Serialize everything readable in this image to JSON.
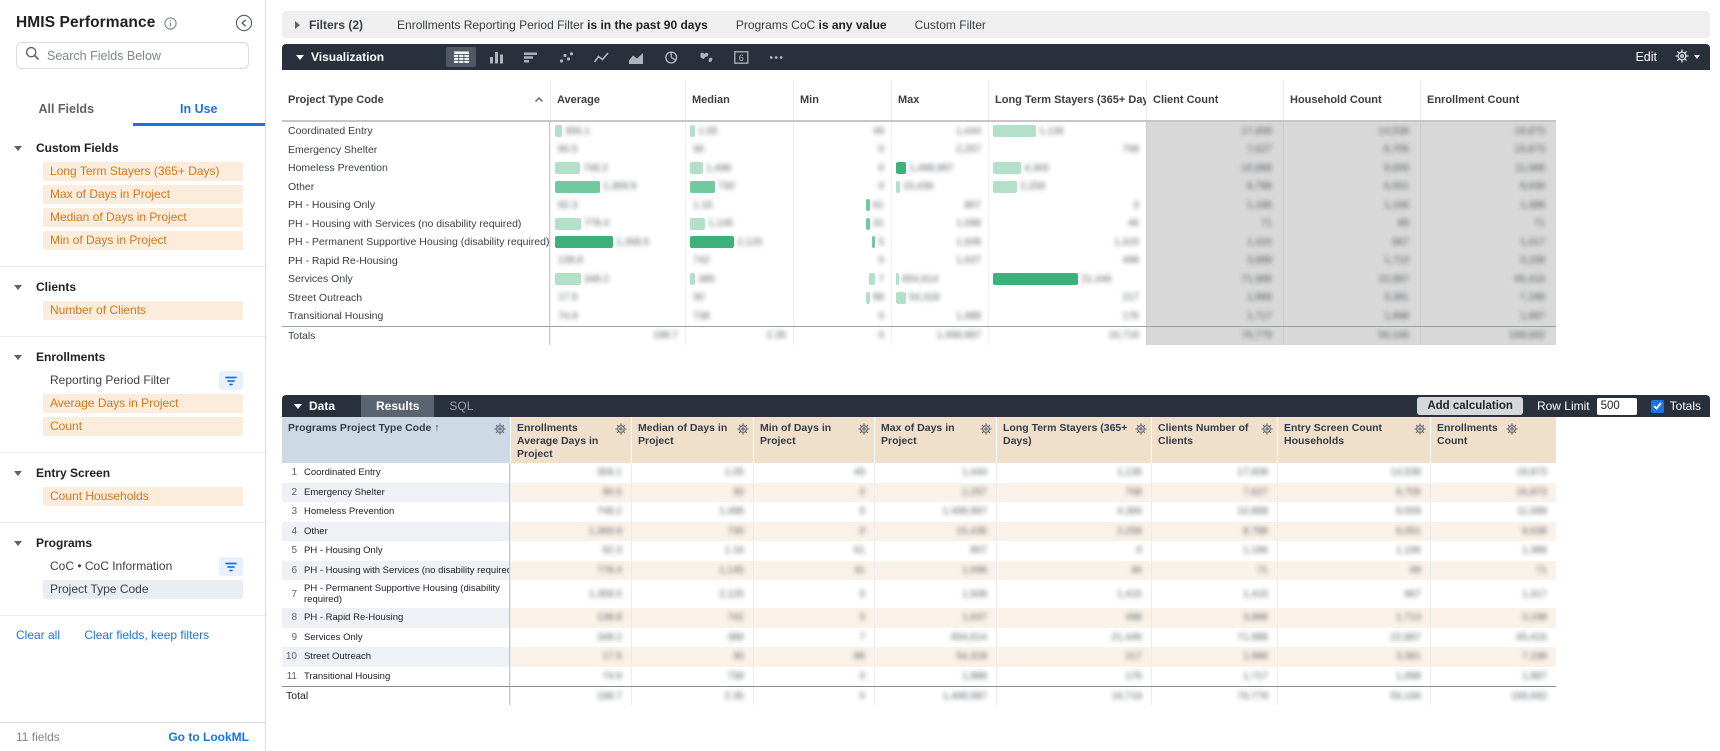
{
  "sidebar": {
    "title": "HMIS Performance",
    "search_placeholder": "Search Fields Below",
    "tabs": [
      {
        "label": "All Fields",
        "active": false
      },
      {
        "label": "In Use",
        "active": true
      }
    ],
    "sections": [
      {
        "name": "Custom Fields",
        "items": [
          {
            "label": "Long Term Stayers (365+ Days)",
            "kind": "measure"
          },
          {
            "label": "Max of Days in Project",
            "kind": "measure"
          },
          {
            "label": "Median of Days in Project",
            "kind": "measure"
          },
          {
            "label": "Min of Days in Project",
            "kind": "measure"
          }
        ]
      },
      {
        "name": "Clients",
        "items": [
          {
            "label": "Number of Clients",
            "kind": "measure"
          }
        ]
      },
      {
        "name": "Enrollments",
        "items": [
          {
            "label": "Reporting Period Filter",
            "kind": "filter"
          },
          {
            "label": "Average Days in Project",
            "kind": "measure"
          },
          {
            "label": "Count",
            "kind": "measure"
          }
        ]
      },
      {
        "name": "Entry Screen",
        "items": [
          {
            "label": "Count Households",
            "kind": "measure"
          }
        ]
      },
      {
        "name": "Programs",
        "items": [
          {
            "label": "CoC • CoC Information",
            "kind": "filter"
          },
          {
            "label": "Project Type Code",
            "kind": "dimension"
          }
        ]
      }
    ],
    "links": {
      "clear_all": "Clear all",
      "clear_fields": "Clear fields, keep filters"
    },
    "footer": {
      "fields_count": "11 fields",
      "lookml": "Go to LookML"
    }
  },
  "filters_bar": {
    "toggle_label": "Filters (2)",
    "filters": [
      {
        "field": "Enrollments Reporting Period Filter",
        "condition": "is in the past 90 days"
      },
      {
        "field": "Programs CoC",
        "condition": "is any value"
      },
      {
        "field": "Custom Filter",
        "condition": ""
      }
    ]
  },
  "viz_panel": {
    "label": "Visualization",
    "edit_label": "Edit",
    "chart_types": [
      {
        "name": "table-chart-icon",
        "selected": true
      },
      {
        "name": "column-chart-icon",
        "selected": false
      },
      {
        "name": "bar-chart-icon",
        "selected": false
      },
      {
        "name": "scatter-chart-icon",
        "selected": false
      },
      {
        "name": "line-chart-icon",
        "selected": false
      },
      {
        "name": "area-chart-icon",
        "selected": false
      },
      {
        "name": "pie-chart-icon",
        "selected": false
      },
      {
        "name": "map-chart-icon",
        "selected": false
      },
      {
        "name": "single-value-icon",
        "selected": false
      },
      {
        "name": "more-charts-icon",
        "selected": false
      }
    ]
  },
  "viz_table": {
    "values_redacted": true,
    "columns": [
      {
        "label": "Project Type Code",
        "kind": "dimension",
        "sorted": "asc"
      },
      {
        "label": "Average",
        "kind": "measure"
      },
      {
        "label": "Median",
        "kind": "measure"
      },
      {
        "label": "Min",
        "kind": "measure"
      },
      {
        "label": "Max",
        "kind": "measure"
      },
      {
        "label": "Long Term Stayers (365+ Days)",
        "kind": "measure"
      },
      {
        "label": "Client Count",
        "kind": "count"
      },
      {
        "label": "Household Count",
        "kind": "count"
      },
      {
        "label": "Enrollment Count",
        "kind": "count"
      }
    ],
    "totals_label": "Totals",
    "rows": [
      {
        "label": "Coordinated Entry",
        "avg": {
          "bar": 0.06,
          "shade": "light",
          "value": "306.1"
        },
        "med": {
          "bar": 0.05,
          "shade": "light",
          "value": "1.05"
        },
        "min": {
          "value": "49"
        },
        "max": {
          "value": "1,444"
        },
        "lts": {
          "bar": 0.3,
          "shade": "light",
          "value": "1,136"
        },
        "cc": "17,608",
        "hc": "14,538",
        "ec": "18,873"
      },
      {
        "label": "Emergency Shelter",
        "avg": {
          "value": "90.5"
        },
        "med": {
          "value": "30"
        },
        "min": {
          "value": "0"
        },
        "max": {
          "value": "2,257"
        },
        "lts": {
          "value": "708"
        },
        "cc": "7,627",
        "hc": "6,705",
        "ec": "16,873"
      },
      {
        "label": "Homeless Prevention",
        "avg": {
          "bar": 0.21,
          "shade": "light",
          "value": "748.2"
        },
        "med": {
          "bar": 0.14,
          "shade": "light",
          "value": "1,498"
        },
        "min": {
          "value": "0"
        },
        "max": {
          "bar": 0.12,
          "shade": "dark",
          "value": "1,498,987"
        },
        "lts": {
          "bar": 0.2,
          "shade": "light",
          "value": "4,366"
        },
        "cc": "10,888",
        "hc": "9,009",
        "ec": "11,088"
      },
      {
        "label": "Other",
        "avg": {
          "bar": 0.38,
          "shade": "mid",
          "value": "1,369.9"
        },
        "med": {
          "bar": 0.27,
          "shade": "mid",
          "value": "730"
        },
        "min": {
          "value": "0"
        },
        "max": {
          "bar": 0.05,
          "shade": "light",
          "value": "15,436"
        },
        "lts": {
          "bar": 0.17,
          "shade": "light",
          "value": "2,258"
        },
        "cc": "8,788",
        "hc": "6,051",
        "ec": "9,638"
      },
      {
        "label": "PH - Housing Only",
        "avg": {
          "value": "92.3"
        },
        "med": {
          "value": "1.16"
        },
        "min": {
          "bar": 0.05,
          "shade": "mid",
          "value": "61"
        },
        "max": {
          "value": "807"
        },
        "lts": {
          "value": "0"
        },
        "cc": "1,186",
        "hc": "1,166",
        "ec": "1,388"
      },
      {
        "label": "PH - Housing with Services (no disability required)",
        "avg": {
          "bar": 0.22,
          "shade": "light",
          "value": "778.4"
        },
        "med": {
          "bar": 0.16,
          "shade": "light",
          "value": "1,145"
        },
        "min": {
          "bar": 0.05,
          "shade": "mid",
          "value": "31"
        },
        "max": {
          "value": "1,098"
        },
        "lts": {
          "value": "46"
        },
        "cc": "71",
        "hc": "89",
        "ec": "71"
      },
      {
        "label": "PH - Permanent Supportive Housing (disability required)",
        "avg": {
          "bar": 0.49,
          "shade": "dark",
          "value": "1,358.5"
        },
        "med": {
          "bar": 0.48,
          "shade": "dark",
          "value": "2,125"
        },
        "min": {
          "bar": 0.04,
          "shade": "mid",
          "value": "5"
        },
        "max": {
          "value": "1,508"
        },
        "lts": {
          "value": "1,415"
        },
        "cc": "1,415",
        "hc": "867",
        "ec": "1,417"
      },
      {
        "label": "PH - Rapid Re-Housing",
        "avg": {
          "value": "138.8"
        },
        "med": {
          "value": "742"
        },
        "min": {
          "value": "0"
        },
        "max": {
          "value": "1,637"
        },
        "lts": {
          "value": "498"
        },
        "cc": "3,888",
        "hc": "1,713",
        "ec": "3,198"
      },
      {
        "label": "Services Only",
        "avg": {
          "bar": 0.22,
          "shade": "light",
          "value": "348.2"
        },
        "med": {
          "bar": 0.05,
          "shade": "light",
          "value": "386"
        },
        "min": {
          "bar": 0.07,
          "shade": "light",
          "value": "7"
        },
        "max": {
          "bar": 0.04,
          "shade": "light",
          "value": "654,614"
        },
        "lts": {
          "bar": 0.6,
          "shade": "dark",
          "value": "21,446"
        },
        "cc": "71,988",
        "hc": "22,887",
        "ec": "65,416"
      },
      {
        "label": "Street Outreach",
        "avg": {
          "value": "17.5"
        },
        "med": {
          "value": "30"
        },
        "min": {
          "bar": 0.05,
          "shade": "light",
          "value": "88"
        },
        "max": {
          "bar": 0.12,
          "shade": "light",
          "value": "54,318"
        },
        "lts": {
          "value": "217"
        },
        "cc": "1,988",
        "hc": "3,381",
        "ec": "7,198"
      },
      {
        "label": "Transitional Housing",
        "avg": {
          "value": "74.9"
        },
        "med": {
          "value": "738"
        },
        "min": {
          "value": "0"
        },
        "max": {
          "value": "1,988"
        },
        "lts": {
          "value": "176"
        },
        "cc": "1,717",
        "hc": "1,998",
        "ec": "1,987"
      }
    ],
    "totals": {
      "avg": "198.7",
      "med": "2.35",
      "min": "0",
      "max": "1,498,987",
      "lts": "16,719",
      "cc": "76,779",
      "hc": "56,166",
      "ec": "168,692"
    }
  },
  "data_panel": {
    "label": "Data",
    "tabs": [
      {
        "label": "Results",
        "active": true
      },
      {
        "label": "SQL",
        "active": false
      }
    ],
    "add_calculation_label": "Add calculation",
    "row_limit_label": "Row Limit",
    "row_limit_value": "500",
    "totals_label": "Totals",
    "totals_checked": true
  },
  "data_table": {
    "values_redacted": true,
    "columns": [
      {
        "label": "Programs Project Type Code ↑",
        "kind": "dimension"
      },
      {
        "label": "Enrollments Average Days in Project",
        "kind": "measure"
      },
      {
        "label": "Median of Days in Project",
        "kind": "measure"
      },
      {
        "label": "Min of Days in Project",
        "kind": "measure"
      },
      {
        "label": "Max of Days in Project",
        "kind": "measure"
      },
      {
        "label": "Long Term Stayers (365+ Days)",
        "kind": "measure"
      },
      {
        "label": "Clients Number of Clients",
        "kind": "measure"
      },
      {
        "label": "Entry Screen Count Households",
        "kind": "measure"
      },
      {
        "label": "Enrollments Count",
        "kind": "measure"
      }
    ],
    "rows": [
      {
        "num": "1",
        "label": "Coordinated Entry",
        "values": [
          "306.1",
          "1.05",
          "49",
          "1,444",
          "1,136",
          "17,608",
          "14,538",
          "18,873"
        ]
      },
      {
        "num": "2",
        "label": "Emergency Shelter",
        "values": [
          "90.5",
          "30",
          "0",
          "2,257",
          "708",
          "7,627",
          "6,705",
          "16,873"
        ]
      },
      {
        "num": "3",
        "label": "Homeless Prevention",
        "values": [
          "748.2",
          "1,498",
          "0",
          "1,498,987",
          "4,366",
          "10,888",
          "9,009",
          "11,088"
        ]
      },
      {
        "num": "4",
        "label": "Other",
        "values": [
          "1,369.9",
          "730",
          "0",
          "15,436",
          "2,258",
          "8,788",
          "6,051",
          "9,638"
        ]
      },
      {
        "num": "5",
        "label": "PH - Housing Only",
        "values": [
          "92.3",
          "1.16",
          "61",
          "807",
          "0",
          "1,186",
          "1,166",
          "1,388"
        ]
      },
      {
        "num": "6",
        "label": "PH - Housing with Services (no disability required)",
        "values": [
          "778.4",
          "1,145",
          "31",
          "1,098",
          "46",
          "71",
          "89",
          "71"
        ]
      },
      {
        "num": "7",
        "label": "PH - Permanent Supportive Housing (disability required)",
        "values": [
          "1,358.5",
          "2,125",
          "5",
          "1,508",
          "1,415",
          "1,415",
          "867",
          "1,417"
        ]
      },
      {
        "num": "8",
        "label": "PH - Rapid Re-Housing",
        "values": [
          "138.8",
          "742",
          "0",
          "1,637",
          "498",
          "3,888",
          "1,713",
          "3,198"
        ]
      },
      {
        "num": "9",
        "label": "Services Only",
        "values": [
          "348.2",
          "386",
          "7",
          "654,614",
          "21,446",
          "71,988",
          "22,887",
          "65,416"
        ]
      },
      {
        "num": "10",
        "label": "Street Outreach",
        "values": [
          "17.5",
          "30",
          "88",
          "54,318",
          "217",
          "1,988",
          "3,381",
          "7,198"
        ]
      },
      {
        "num": "11",
        "label": "Transitional Housing",
        "values": [
          "74.9",
          "738",
          "0",
          "1,988",
          "176",
          "1,717",
          "1,998",
          "1,987"
        ]
      }
    ],
    "total_label": "Total",
    "total_values": [
      "198.7",
      "2.35",
      "0",
      "1,498,987",
      "16,719",
      "76,779",
      "56,166",
      "168,692"
    ]
  }
}
